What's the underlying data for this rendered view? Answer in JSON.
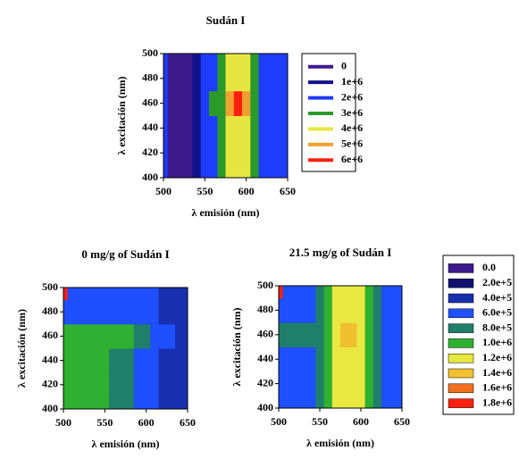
{
  "chart_data": [
    {
      "type": "contour",
      "title": "Sudán I",
      "xlabel": "λ emisión (nm)",
      "ylabel": "λ excitación (nm)",
      "xlim": [
        500,
        650
      ],
      "ylim": [
        400,
        500
      ],
      "xticks": [
        500,
        550,
        600,
        650
      ],
      "yticks": [
        400,
        420,
        440,
        460,
        480,
        500
      ],
      "x": [
        500,
        510,
        520,
        530,
        540,
        550,
        560,
        570,
        580,
        590,
        600,
        610,
        620,
        630,
        640,
        650
      ],
      "y": [
        400,
        420,
        440,
        460,
        480,
        500
      ],
      "z": [
        [
          2100000,
          500000,
          500000,
          500000,
          1500000,
          2200000,
          2500000,
          3200000,
          4100000,
          4300000,
          4100000,
          3200000,
          2200000,
          2100000,
          2100000,
          2100000
        ],
        [
          2100000,
          500000,
          500000,
          500000,
          1500000,
          2200000,
          2500000,
          3200000,
          4100000,
          4300000,
          4100000,
          3200000,
          2200000,
          2100000,
          2100000,
          2100000
        ],
        [
          2100000,
          500000,
          500000,
          500000,
          1500000,
          2200000,
          2500000,
          3200000,
          4100000,
          4300000,
          4100000,
          3200000,
          2200000,
          2100000,
          2100000,
          2100000
        ],
        [
          2100000,
          500000,
          500000,
          500000,
          1500000,
          2200000,
          3000000,
          3800000,
          5200000,
          6100000,
          5200000,
          3500000,
          2200000,
          2100000,
          2100000,
          2100000
        ],
        [
          2100000,
          500000,
          500000,
          500000,
          1500000,
          2200000,
          2500000,
          3200000,
          4100000,
          4300000,
          4100000,
          3200000,
          2200000,
          2100000,
          2100000,
          2100000
        ],
        [
          2100000,
          500000,
          500000,
          500000,
          1500000,
          2200000,
          2500000,
          3100000,
          4000000,
          4100000,
          4000000,
          3100000,
          2200000,
          2100000,
          2100000,
          2100000
        ]
      ],
      "levels": [
        0,
        {
          "value": 1000000,
          "label": "1e+6"
        },
        {
          "value": 2000000,
          "label": "2e+6"
        },
        {
          "value": 3000000,
          "label": "3e+6"
        },
        {
          "value": 4000000,
          "label": "4e+6"
        },
        {
          "value": 5000000,
          "label": "5e+6"
        },
        {
          "value": 6000000,
          "label": "6e+6"
        }
      ],
      "colors": [
        "#3c1a8c",
        "#12128a",
        "#1e3cff",
        "#2a9a2a",
        "#e6e640",
        "#f0a030",
        "#ff2010"
      ]
    },
    {
      "type": "contour",
      "title": "0 mg/g of Sudán I",
      "xlabel": "λ emisión (nm)",
      "ylabel": "λ excitación (nm)",
      "xlim": [
        500,
        650
      ],
      "ylim": [
        400,
        500
      ],
      "xticks": [
        500,
        550,
        600,
        650
      ],
      "yticks": [
        400,
        420,
        440,
        460,
        480,
        500
      ],
      "x": [
        500,
        510,
        520,
        530,
        540,
        550,
        560,
        570,
        580,
        590,
        600,
        610,
        620,
        630,
        640,
        650
      ],
      "y": [
        400,
        420,
        440,
        460,
        480,
        500
      ],
      "z": [
        [
          1050000,
          1050000,
          1050000,
          1050000,
          1050000,
          1050000,
          850000,
          850000,
          850000,
          650000,
          650000,
          650000,
          450000,
          450000,
          450000,
          450000
        ],
        [
          1050000,
          1050000,
          1050000,
          1050000,
          1050000,
          1050000,
          850000,
          850000,
          850000,
          650000,
          650000,
          650000,
          450000,
          450000,
          450000,
          450000
        ],
        [
          1050000,
          1050000,
          1050000,
          1050000,
          1050000,
          1050000,
          850000,
          850000,
          850000,
          650000,
          650000,
          650000,
          450000,
          450000,
          450000,
          450000
        ],
        [
          1050000,
          1050000,
          1050000,
          1050000,
          1050000,
          1050000,
          1050000,
          1050000,
          1050000,
          850000,
          850000,
          650000,
          650000,
          650000,
          450000,
          450000
        ],
        [
          650000,
          650000,
          650000,
          650000,
          650000,
          650000,
          650000,
          650000,
          650000,
          650000,
          650000,
          650000,
          450000,
          450000,
          450000,
          450000
        ],
        [
          1850000,
          650000,
          650000,
          650000,
          650000,
          650000,
          650000,
          650000,
          650000,
          650000,
          650000,
          650000,
          450000,
          450000,
          450000,
          450000
        ]
      ],
      "levels": [
        {
          "value": 0,
          "label": "0.0"
        },
        {
          "value": 200000,
          "label": "2.0e+5"
        },
        {
          "value": 400000,
          "label": "4.0e+5"
        },
        {
          "value": 600000,
          "label": "6.0e+5"
        },
        {
          "value": 800000,
          "label": "8.0e+5"
        },
        {
          "value": 1000000,
          "label": "1.0e+6"
        },
        {
          "value": 1200000,
          "label": "1.2e+6"
        },
        {
          "value": 1400000,
          "label": "1.4e+6"
        },
        {
          "value": 1600000,
          "label": "1.6e+6"
        },
        {
          "value": 1800000,
          "label": "1.8e+6"
        }
      ],
      "colors": [
        "#3c1a8c",
        "#101070",
        "#1830b0",
        "#1e50ff",
        "#1f7f6a",
        "#30b030",
        "#e8e840",
        "#f0c030",
        "#f07020",
        "#ff2010"
      ]
    },
    {
      "type": "contour",
      "title": "21.5 mg/g of Sudán I",
      "xlabel": "λ emisión (nm)",
      "ylabel": "λ excitación (nm)",
      "xlim": [
        500,
        650
      ],
      "ylim": [
        400,
        500
      ],
      "xticks": [
        500,
        550,
        600,
        650
      ],
      "yticks": [
        400,
        420,
        440,
        460,
        480,
        500
      ],
      "x": [
        500,
        510,
        520,
        530,
        540,
        550,
        560,
        570,
        580,
        590,
        600,
        610,
        620,
        630,
        640,
        650
      ],
      "y": [
        400,
        420,
        440,
        460,
        480,
        500
      ],
      "z": [
        [
          650000,
          650000,
          650000,
          650000,
          650000,
          850000,
          1050000,
          1250000,
          1250000,
          1250000,
          1250000,
          1050000,
          850000,
          650000,
          650000,
          650000
        ],
        [
          650000,
          650000,
          650000,
          650000,
          650000,
          850000,
          1050000,
          1250000,
          1250000,
          1250000,
          1250000,
          1050000,
          850000,
          650000,
          650000,
          650000
        ],
        [
          650000,
          650000,
          650000,
          650000,
          650000,
          850000,
          1050000,
          1250000,
          1250000,
          1250000,
          1250000,
          1050000,
          850000,
          650000,
          650000,
          650000
        ],
        [
          850000,
          850000,
          850000,
          850000,
          850000,
          850000,
          1050000,
          1250000,
          1450000,
          1450000,
          1250000,
          1050000,
          850000,
          650000,
          650000,
          650000
        ],
        [
          650000,
          650000,
          650000,
          650000,
          650000,
          850000,
          1050000,
          1250000,
          1250000,
          1250000,
          1250000,
          1050000,
          850000,
          650000,
          650000,
          650000
        ],
        [
          1850000,
          650000,
          650000,
          650000,
          650000,
          850000,
          1050000,
          1250000,
          1250000,
          1250000,
          1250000,
          1050000,
          850000,
          650000,
          650000,
          650000
        ]
      ]
    }
  ]
}
